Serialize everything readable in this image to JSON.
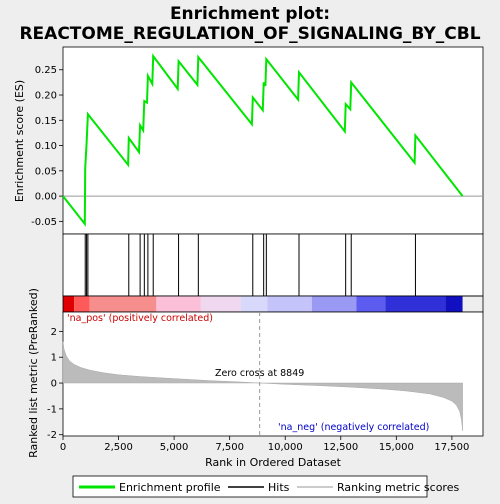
{
  "chart_data": {
    "type": "line",
    "title_line1": "Enrichment plot:",
    "title_line2": "REACTOME_REGULATION_OF_SIGNALING_BY_CBL",
    "top_panel": {
      "ylabel": "Enrichment score (ES)",
      "ylim": [
        -0.075,
        0.295
      ],
      "yticks": [
        -0.05,
        0.0,
        0.05,
        0.1,
        0.15,
        0.2,
        0.25
      ],
      "ytick_labels": [
        "-0.05",
        "0.00",
        "0.05",
        "0.10",
        "0.15",
        "0.20",
        "0.25"
      ],
      "series": [
        {
          "name": "Enrichment profile",
          "color": "#00e600",
          "x": [
            0,
            980,
            1000,
            1060,
            1120,
            2930,
            2960,
            3420,
            3470,
            3610,
            3660,
            3780,
            3820,
            4020,
            4060,
            5160,
            5200,
            6050,
            6090,
            8500,
            8540,
            8990,
            9030,
            9110,
            9150,
            10580,
            10620,
            12680,
            12720,
            12930,
            12970,
            15820,
            15860,
            17980
          ],
          "y": [
            0.0,
            -0.055,
            0.055,
            0.105,
            0.162,
            0.062,
            0.115,
            0.087,
            0.14,
            0.13,
            0.188,
            0.185,
            0.238,
            0.222,
            0.277,
            0.212,
            0.267,
            0.22,
            0.275,
            0.142,
            0.195,
            0.17,
            0.225,
            0.218,
            0.271,
            0.191,
            0.245,
            0.128,
            0.182,
            0.172,
            0.225,
            0.066,
            0.12,
            0.0
          ]
        }
      ]
    },
    "hits": {
      "x": [
        1000,
        1060,
        1120,
        2960,
        3470,
        3660,
        3820,
        4060,
        5200,
        6090,
        8540,
        9030,
        9150,
        10620,
        12720,
        12970,
        15860
      ]
    },
    "bottom_panel": {
      "xlabel": "Rank in Ordered Dataset",
      "ylabel": "Ranked list metric (PreRanked)",
      "xlim": [
        0,
        18900
      ],
      "ylim": [
        -2.05,
        2.75
      ],
      "xticks": [
        0,
        2500,
        5000,
        7500,
        10000,
        12500,
        15000,
        17500
      ],
      "xtick_labels": [
        "0",
        "2,500",
        "5,000",
        "7,500",
        "10,000",
        "12,500",
        "15,000",
        "17,500"
      ],
      "yticks": [
        -2,
        -1,
        0,
        1,
        2
      ],
      "ytick_labels": [
        "-2",
        "-1",
        "0",
        "1",
        "2"
      ],
      "metric_curve": {
        "x": [
          0,
          50,
          150,
          300,
          500,
          800,
          1200,
          1800,
          2500,
          3500,
          5000,
          6500,
          8000,
          8849,
          10000,
          11500,
          13000,
          14500,
          15500,
          16500,
          17100,
          17500,
          17700,
          17850,
          17930,
          17980
        ],
        "y": [
          1.6,
          1.3,
          1.05,
          0.85,
          0.72,
          0.6,
          0.5,
          0.4,
          0.32,
          0.25,
          0.17,
          0.1,
          0.04,
          0.0,
          -0.05,
          -0.1,
          -0.16,
          -0.24,
          -0.31,
          -0.42,
          -0.55,
          -0.7,
          -0.85,
          -1.1,
          -1.4,
          -1.85
        ]
      },
      "zero_cross_label": "Zero cross at 8849",
      "zero_cross_x": 8849,
      "pos_label": "'na_pos' (positively correlated)",
      "neg_label": "'na_neg' (negatively correlated)",
      "pos_color": "#cc0000",
      "neg_color": "#0000cc"
    },
    "heatmap_colors": [
      "#e00000",
      "#ff5a5a",
      "#f78e8e",
      "#fbc0d8",
      "#f0d8f0",
      "#d8d8fa",
      "#c4c4fa",
      "#9a9af5",
      "#5c5cf0",
      "#3030d8",
      "#1010c0"
    ],
    "legend": [
      {
        "label": "Enrichment profile",
        "color": "#00e600"
      },
      {
        "label": "Hits",
        "color": "#000000"
      },
      {
        "label": "Ranking metric scores",
        "color": "#bbbbbb"
      }
    ]
  }
}
